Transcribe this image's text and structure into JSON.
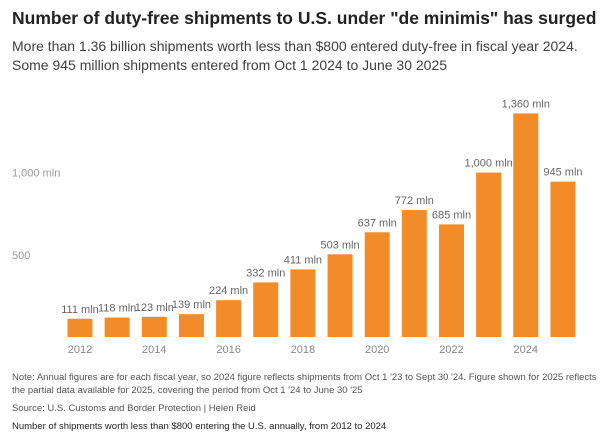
{
  "header": {
    "title": "Number of duty-free shipments to U.S. under \"de minimis\" has surged",
    "subtitle_line1": "More than 1.36 billion shipments worth less than $800 entered duty-free in fiscal year 2024.",
    "subtitle_line2": "Some 945 million shipments entered from Oct 1 2024 to June 30 2025"
  },
  "chart_data": {
    "type": "bar",
    "categories": [
      "2012",
      "2013",
      "2014",
      "2015",
      "2016",
      "2017",
      "2018",
      "2019",
      "2020",
      "2021",
      "2022",
      "2023",
      "2024",
      "2025"
    ],
    "values": [
      111,
      118,
      123,
      139,
      224,
      332,
      411,
      503,
      637,
      772,
      685,
      1000,
      1360,
      945
    ],
    "value_labels": [
      "111 mln",
      "118 mln",
      "123 mln",
      "139 mln",
      "224 mln",
      "332 mln",
      "411 mln",
      "503 mln",
      "637 mln",
      "772 mln",
      "685 mln",
      "1,000 mln",
      "1,360 mln",
      "945 mln"
    ],
    "x_tick_labels": [
      "2012",
      "",
      "2014",
      "",
      "2016",
      "",
      "2018",
      "",
      "2020",
      "",
      "2022",
      "",
      "2024",
      ""
    ],
    "y_ticks": [
      500,
      1000
    ],
    "y_tick_labels": [
      "500",
      "1,000 mln"
    ],
    "ylim": [
      0,
      1400
    ],
    "xlabel": "",
    "ylabel": "",
    "grid": false,
    "bar_color": "#F28C28"
  },
  "footer": {
    "note": "Note: Annual figures are for each fiscal year, so 2024 figure reflects shipments from Oct 1 '23 to Sept 30 '24. Figure shown for 2025 reflects the partial data available for 2025, covering the period from Oct 1 '24 to June 30 '25",
    "source": "Source: U.S. Customs and Border Protection | Helen Reid",
    "caption": "Number of shipments worth less than $800 entering the U.S. annually, from 2012 to 2024"
  }
}
